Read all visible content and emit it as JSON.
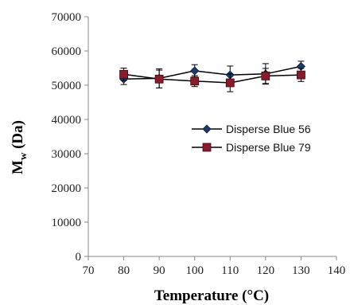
{
  "chart_data": {
    "type": "line",
    "title": "",
    "xlabel": "Temperature (°C)",
    "ylabel_main": "M",
    "ylabel_sub": "w",
    "ylabel_unit": " (Da)",
    "xlim": [
      70,
      140
    ],
    "ylim": [
      0,
      70000
    ],
    "x_ticks": [
      "70",
      "80",
      "90",
      "100",
      "110",
      "120",
      "130",
      "140"
    ],
    "y_ticks": [
      "0",
      "10000",
      "20000",
      "30000",
      "40000",
      "50000",
      "60000",
      "70000"
    ],
    "grid": false,
    "legend_position": "right-center",
    "x": [
      80,
      90,
      100,
      110,
      120,
      130
    ],
    "series": [
      {
        "name": "Disperse Blue 56",
        "marker": "diamond",
        "color": "#1f3a6b",
        "values": [
          51800,
          52000,
          54200,
          53000,
          53300,
          55500
        ],
        "error": [
          1600,
          2800,
          1800,
          2600,
          3000,
          1500
        ]
      },
      {
        "name": "Disperse Blue 79",
        "marker": "square",
        "color": "#8b1a2b",
        "values": [
          53200,
          51800,
          51200,
          50700,
          52700,
          53000
        ],
        "error": [
          1800,
          2600,
          1600,
          2600,
          2200,
          1900
        ]
      }
    ]
  }
}
